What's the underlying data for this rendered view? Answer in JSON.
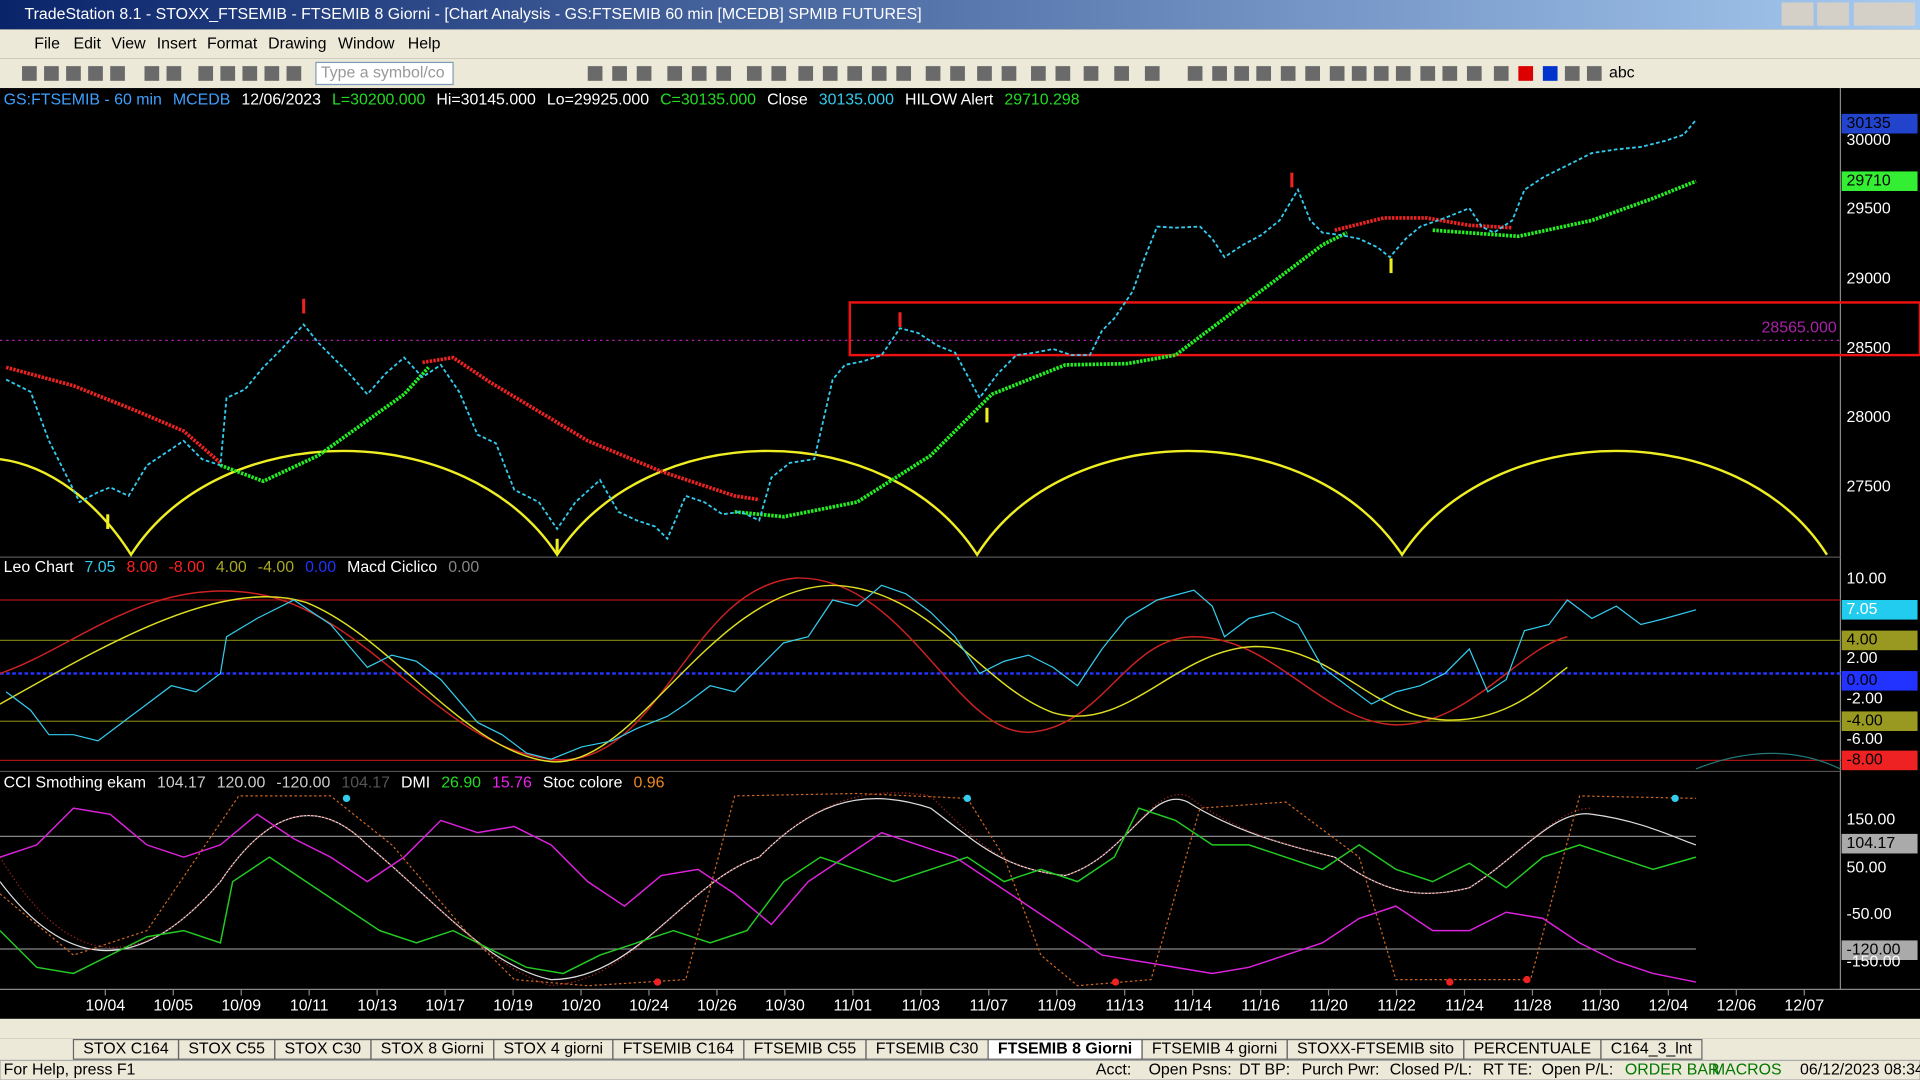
{
  "window": {
    "title": "TradeStation 8.1 - STOXX_FTSEMIB - FTSEMIB  8 Giorni - [Chart Analysis - GS:FTSEMIB  60 min  [MCEDB] SPMIB FUTURES]"
  },
  "menu": [
    "File",
    "Edit",
    "View",
    "Insert",
    "Format",
    "Drawing",
    "Window",
    "Help"
  ],
  "toolbar": {
    "symbol_input": "Type a symbol/co",
    "text_tool": "abc"
  },
  "price_pane": {
    "header": [
      {
        "text": "GS:FTSEMIB - 60 min",
        "color": "#3ea0ff"
      },
      {
        "text": "MCEDB",
        "color": "#3ea0ff"
      },
      {
        "text": "12/06/2023",
        "color": "#ffffff"
      },
      {
        "text": "L=30200.000",
        "color": "#22dd22"
      },
      {
        "text": "Hi=30145.000",
        "color": "#ffffff"
      },
      {
        "text": "Lo=29925.000",
        "color": "#ffffff"
      },
      {
        "text": "C=30135.000",
        "color": "#22dd22"
      },
      {
        "text": "Close",
        "color": "#ffffff"
      },
      {
        "text": "30135.000",
        "color": "#33ccee"
      },
      {
        "text": "HILOW Alert",
        "color": "#ffffff"
      },
      {
        "text": "29710.298",
        "color": "#22dd22"
      }
    ],
    "axis": [
      {
        "text": "30135",
        "color": "#000000",
        "bg": "#2244cc"
      },
      {
        "text": "30000",
        "color": "#ffffff"
      },
      {
        "text": "29710",
        "color": "#000000",
        "bg": "#33ee33"
      },
      {
        "text": "29500",
        "color": "#ffffff"
      },
      {
        "text": "29000",
        "color": "#ffffff"
      },
      {
        "text": "28500",
        "color": "#ffffff"
      },
      {
        "text": "28000",
        "color": "#ffffff"
      },
      {
        "text": "27500",
        "color": "#ffffff"
      }
    ],
    "level_label": "28565.000"
  },
  "leo_pane": {
    "header": [
      {
        "text": "Leo Chart",
        "color": "#ffffff"
      },
      {
        "text": "7.05",
        "color": "#33ccee"
      },
      {
        "text": "8.00",
        "color": "#ff2222"
      },
      {
        "text": "-8.00",
        "color": "#ff2222"
      },
      {
        "text": "4.00",
        "color": "#aaaa22"
      },
      {
        "text": "-4.00",
        "color": "#aaaa22"
      },
      {
        "text": "0.00",
        "color": "#2233ff"
      },
      {
        "text": "Macd Ciclico",
        "color": "#ffffff"
      },
      {
        "text": "0.00",
        "color": "#888888"
      }
    ],
    "axis": [
      {
        "text": "10.00",
        "color": "#ffffff"
      },
      {
        "text": "7.05",
        "color": "#ffffff",
        "bg": "#22ccee"
      },
      {
        "text": "4.00",
        "color": "#000000",
        "bg": "#999922"
      },
      {
        "text": "2.00",
        "color": "#ffffff"
      },
      {
        "text": "0.00",
        "color": "#000000",
        "bg": "#2233ff"
      },
      {
        "text": "-2.00",
        "color": "#ffffff"
      },
      {
        "text": "-4.00",
        "color": "#000000",
        "bg": "#999922"
      },
      {
        "text": "-6.00",
        "color": "#ffffff"
      },
      {
        "text": "-8.00",
        "color": "#000000",
        "bg": "#ee2222"
      }
    ]
  },
  "cci_pane": {
    "header": [
      {
        "text": "CCI Smothing ekam",
        "color": "#ffffff"
      },
      {
        "text": "104.17",
        "color": "#cccccc"
      },
      {
        "text": "120.00",
        "color": "#cccccc"
      },
      {
        "text": "-120.00",
        "color": "#cccccc"
      },
      {
        "text": "104.17",
        "color": "#555555"
      },
      {
        "text": "DMI",
        "color": "#ffffff"
      },
      {
        "text": "26.90",
        "color": "#22dd22"
      },
      {
        "text": "15.76",
        "color": "#ee22ee"
      },
      {
        "text": "Stoc colore",
        "color": "#ffffff"
      },
      {
        "text": "0.96",
        "color": "#ee8822"
      }
    ],
    "axis": [
      {
        "text": "150.00",
        "color": "#ffffff"
      },
      {
        "text": "104.17",
        "color": "#000000",
        "bg": "#aaaaaa"
      },
      {
        "text": "50.00",
        "color": "#ffffff"
      },
      {
        "text": "-50.00",
        "color": "#ffffff"
      },
      {
        "text": "-120.00",
        "color": "#000000",
        "bg": "#aaaaaa"
      },
      {
        "text": "-150.00",
        "color": "#ffffff"
      }
    ]
  },
  "dates": [
    "10/04",
    "10/05",
    "10/09",
    "10/11",
    "10/13",
    "10/17",
    "10/19",
    "10/20",
    "10/24",
    "10/26",
    "10/30",
    "11/01",
    "11/03",
    "11/07",
    "11/09",
    "11/13",
    "11/14",
    "11/16",
    "11/20",
    "11/22",
    "11/24",
    "11/28",
    "11/30",
    "12/04",
    "12/06",
    "12/07"
  ],
  "tabs": [
    "STOX C164",
    "STOX C55",
    "STOX  C30",
    "STOX  8 Giorni",
    "STOX 4 giorni",
    "FTSEMIB C164",
    "FTSEMIB C55",
    "FTSEMIB C30",
    "FTSEMIB  8 Giorni",
    "FTSEMIB  4 giorni",
    "STOXX-FTSEMIB sito",
    "PERCENTUALE",
    "C164_3_lnt"
  ],
  "active_tab": 8,
  "status": [
    "For Help, press F1",
    "Acct:",
    "Open Psns:",
    "DT BP:",
    "Purch Pwr:",
    "Closed P/L:",
    "RT TE:",
    "Open P/L:",
    "ORDER BAR",
    "MACROS",
    "06/12/2023 08:34"
  ]
}
